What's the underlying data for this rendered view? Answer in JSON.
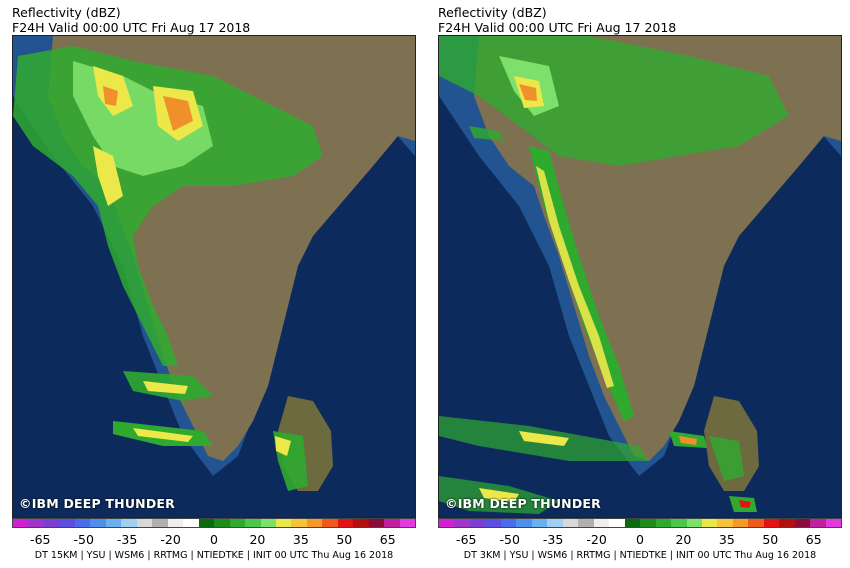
{
  "panels": [
    {
      "title_line1": "Reflectivity (dBZ)",
      "title_line2": "F24H Valid 00:00 UTC Fri Aug 17 2018",
      "watermark": "©IBM DEEP THUNDER",
      "footer": "DT 15KM | YSU | WSM6 | RRTMG | NTIEDTKE | INIT 00 UTC Thu Aug 16 2018"
    },
    {
      "title_line1": "Reflectivity (dBZ)",
      "title_line2": "F24H Valid 00:00 UTC Fri Aug 17 2018",
      "watermark": "©IBM DEEP THUNDER",
      "footer": "DT 3KM | YSU | WSM6 | RRTMG | NTIEDTKE | INIT 00 UTC Thu Aug 16 2018"
    }
  ],
  "colorbar": {
    "ticks": [
      "-65",
      "-50",
      "-35",
      "-20",
      "0",
      "20",
      "35",
      "50",
      "65"
    ],
    "colors": [
      "#d21fd2",
      "#a035c8",
      "#7a3fd0",
      "#5a4fe0",
      "#4a6cea",
      "#4f8eea",
      "#6ab0f0",
      "#9fd0f4",
      "#d8d8d8",
      "#b0b0b0",
      "#eeeeee",
      "#ffffff",
      "#0a6a10",
      "#1d8c1d",
      "#2faa2f",
      "#4cc74c",
      "#7de06a",
      "#e8e84a",
      "#f5c43a",
      "#f59a2a",
      "#ef5a1a",
      "#e01414",
      "#b01010",
      "#8a0a3a",
      "#c01fa0",
      "#e03ae0"
    ]
  },
  "map_colors": {
    "ocean_deep": "#0d2a5c",
    "ocean_shelf": "#2b67a8",
    "land": "#7e7152",
    "light_echo": "#3ab53a",
    "moderate_echo": "#7ee05a",
    "heavy_echo": "#ece84a",
    "intense_echo": "#f0902a"
  }
}
